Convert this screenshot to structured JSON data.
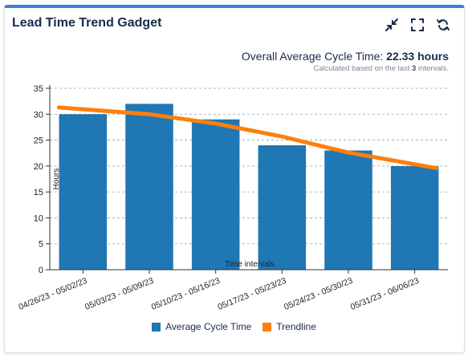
{
  "gadget": {
    "title": "Lead Time Trend Gadget",
    "icons": [
      "collapse-icon",
      "fullscreen-icon",
      "refresh-icon"
    ]
  },
  "summary": {
    "label": "Overall Average Cycle Time:",
    "value": "22.33 hours",
    "calc_prefix": "Calculated based on the last",
    "calc_count": "3",
    "calc_suffix": "intervals."
  },
  "chart_data": {
    "type": "bar",
    "categories": [
      "04/26/23 - 05/02/23",
      "05/03/23 - 05/09/23",
      "05/10/23 - 05/16/23",
      "05/17/23 - 05/23/23",
      "05/24/23 - 05/30/23",
      "05/31/23 - 06/06/23"
    ],
    "series": [
      {
        "name": "Average Cycle Time",
        "type": "bar",
        "color": "#1f77b4",
        "values": [
          30,
          32,
          29,
          24,
          23,
          20
        ]
      },
      {
        "name": "Trendline",
        "type": "line",
        "color": "#ff7f0e",
        "values": [
          31.3,
          30.0,
          28.2,
          25.7,
          22.6,
          19.6
        ]
      }
    ],
    "xlabel": "Time intervals",
    "ylabel": "Hours",
    "ylim": [
      0,
      35
    ],
    "yticks": [
      0,
      5,
      10,
      15,
      20,
      25,
      30,
      35
    ],
    "grid": true,
    "legend": "bottom"
  }
}
